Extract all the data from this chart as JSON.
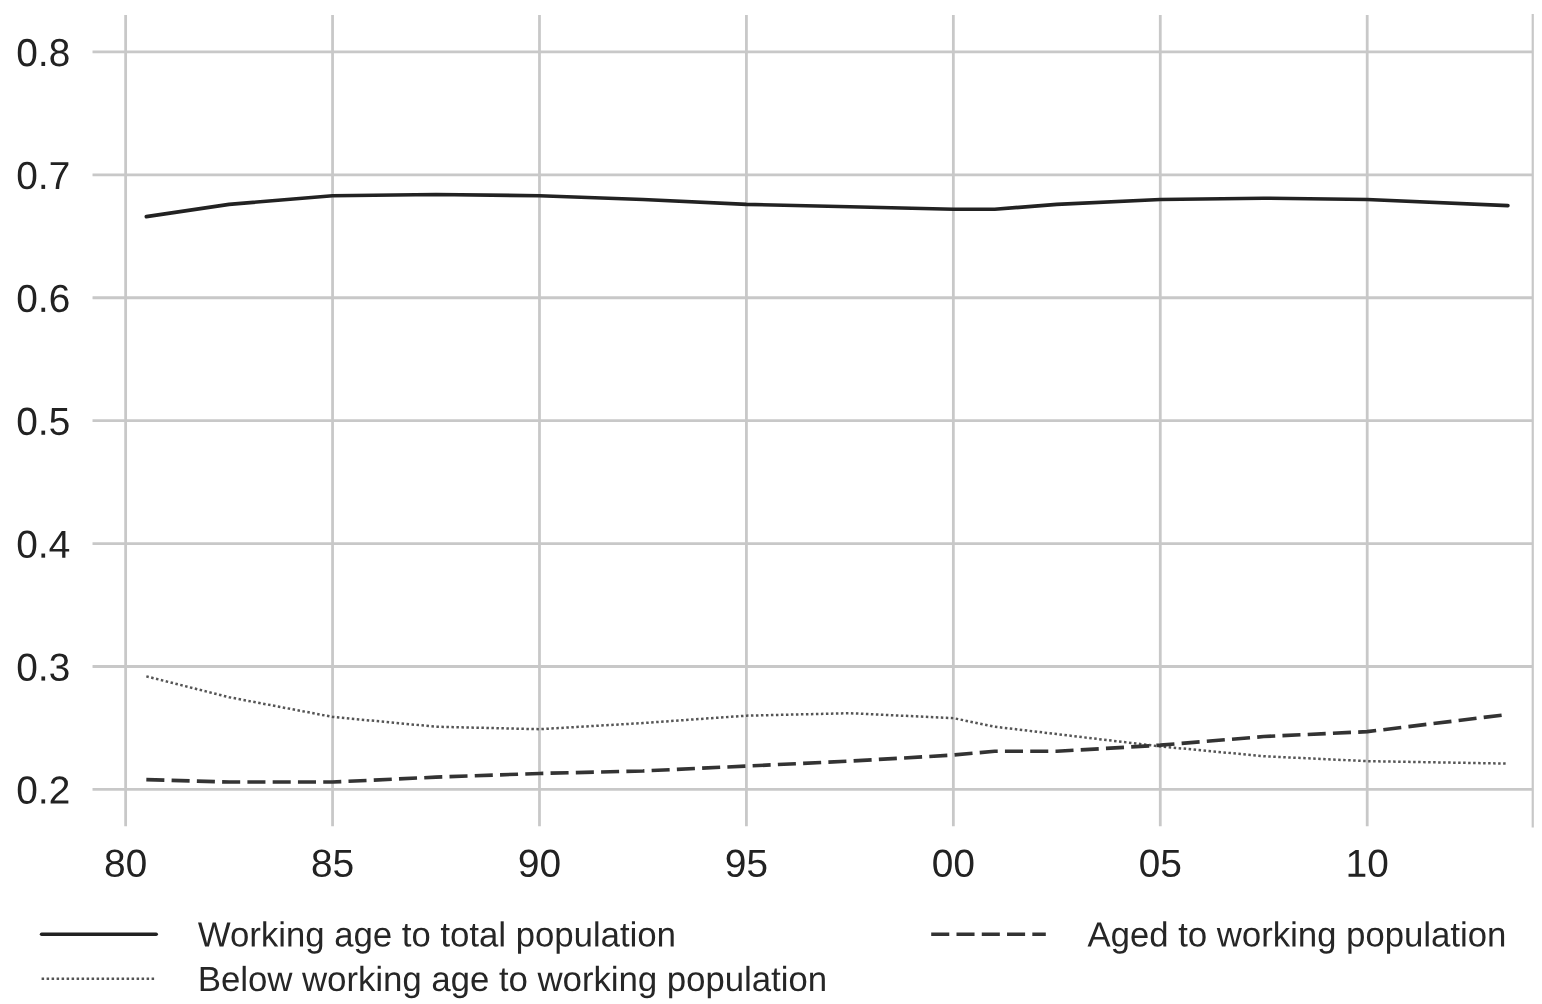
{
  "chart_data": {
    "type": "line",
    "x": [
      1980.5,
      1982.5,
      1985,
      1987.5,
      1990,
      1992.5,
      1995,
      1997.5,
      2000,
      2001,
      2002.5,
      2005,
      2007.5,
      2010,
      2013.4
    ],
    "series": [
      {
        "name": "Working age to total population",
        "color": "#222222",
        "line_style": "solid",
        "values": [
          0.666,
          0.676,
          0.683,
          0.684,
          0.683,
          0.68,
          0.676,
          0.674,
          0.672,
          0.672,
          0.676,
          0.68,
          0.681,
          0.68,
          0.675
        ]
      },
      {
        "name": "Below working age to working population",
        "color": "#555555",
        "line_style": "dotted",
        "values": [
          0.292,
          0.275,
          0.259,
          0.251,
          0.249,
          0.254,
          0.26,
          0.262,
          0.258,
          0.251,
          0.245,
          0.235,
          0.227,
          0.223,
          0.221
        ]
      },
      {
        "name": "Aged to working population",
        "color": "#333333",
        "line_style": "dashed",
        "values": [
          0.208,
          0.206,
          0.206,
          0.21,
          0.213,
          0.215,
          0.219,
          0.223,
          0.228,
          0.231,
          0.231,
          0.236,
          0.243,
          0.247,
          0.261
        ]
      }
    ],
    "xlim": [
      1979.2,
      2014
    ],
    "xticks": [
      {
        "value": 1980,
        "label": "80"
      },
      {
        "value": 1985,
        "label": "85"
      },
      {
        "value": 1990,
        "label": "90"
      },
      {
        "value": 1995,
        "label": "95"
      },
      {
        "value": 2000,
        "label": "00"
      },
      {
        "value": 2005,
        "label": "05"
      },
      {
        "value": 2010,
        "label": "10"
      }
    ],
    "ylim": [
      0.17,
      0.83
    ],
    "yticks": [
      0.2,
      0.3,
      0.4,
      0.5,
      0.6,
      0.7,
      0.8
    ],
    "grid": true,
    "legend": "bottom"
  }
}
